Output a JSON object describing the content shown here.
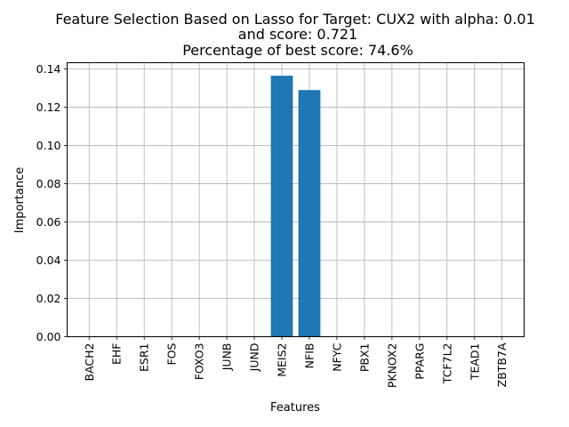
{
  "chart_data": {
    "type": "bar",
    "title_lines": [
      "Feature Selection Based on Lasso for Target: CUX2 with alpha: 0.01",
      "and score: 0.721",
      "Percentage of best score: 74.6%"
    ],
    "xlabel": "Features",
    "ylabel": "Importance",
    "categories": [
      "BACH2",
      "EHF",
      "ESR1",
      "FOS",
      "FOXO3",
      "JUNB",
      "JUND",
      "MEIS2",
      "NFIB",
      "NFYC",
      "PBX1",
      "PKNOX2",
      "PPARG",
      "TCF7L2",
      "TEAD1",
      "ZBTB7A"
    ],
    "values": [
      0.0,
      0.0,
      0.0,
      0.0,
      0.0,
      0.0,
      0.0,
      0.1365,
      0.129,
      0.0,
      0.0,
      0.0,
      0.0,
      0.0,
      0.0,
      0.0
    ],
    "ylim": [
      0.0,
      0.1433
    ],
    "yticks": [
      0.0,
      0.02,
      0.04,
      0.06,
      0.08,
      0.1,
      0.12,
      0.14
    ],
    "ytick_labels": [
      "0.00",
      "0.02",
      "0.04",
      "0.06",
      "0.08",
      "0.10",
      "0.12",
      "0.14"
    ],
    "grid": true,
    "bar_color": "#1f77b4",
    "grid_color": "#b0b0b0"
  }
}
